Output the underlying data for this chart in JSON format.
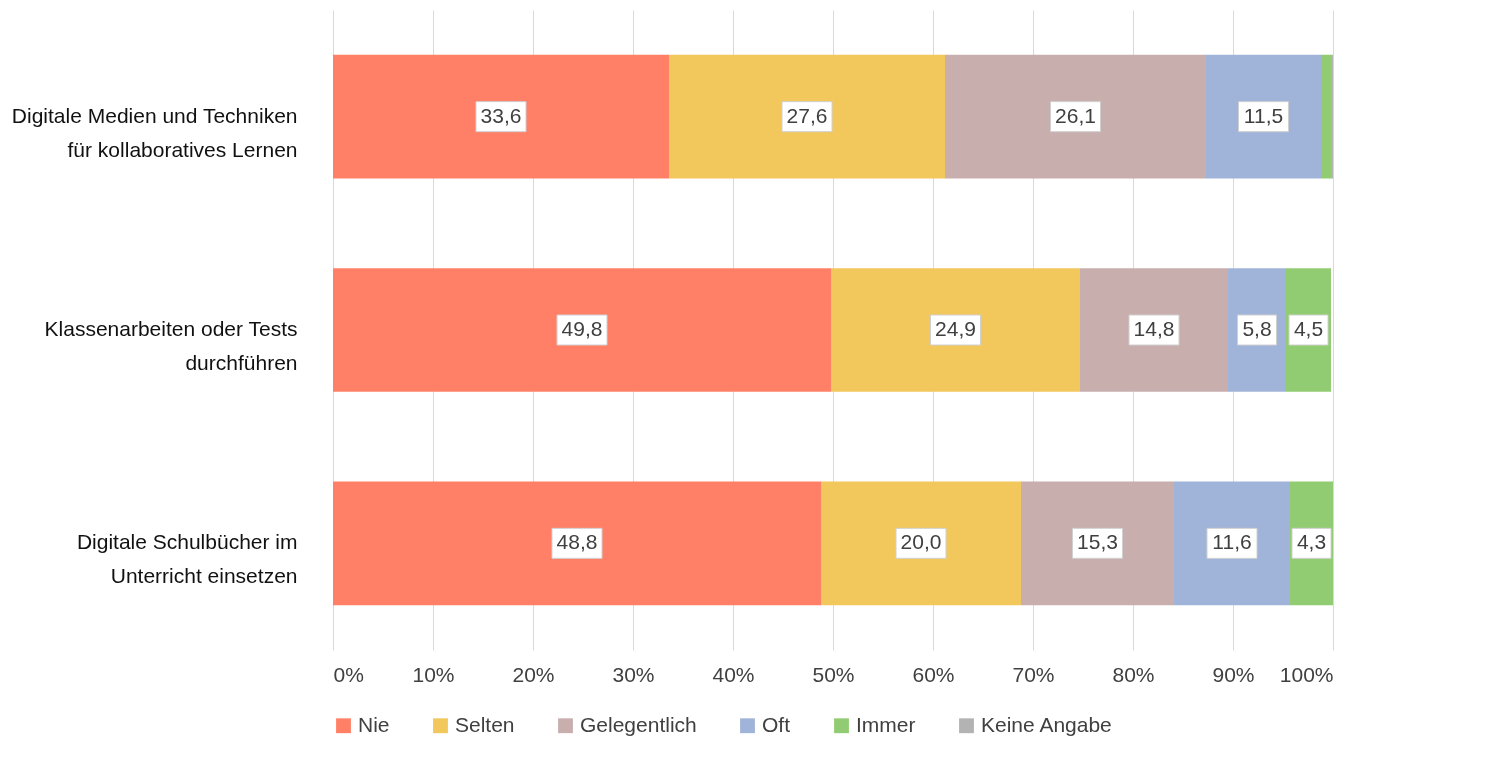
{
  "chart_data": {
    "type": "bar",
    "orientation": "horizontal",
    "stacked": true,
    "categories": [
      "Digitale Medien und Techniken für kollaboratives Lernen",
      "Klassenarbeiten oder Tests durchführen",
      "Digitale Schulbücher im Unterricht einsetzen"
    ],
    "series": [
      {
        "name": "Nie",
        "color": "#ff8066",
        "values": [
          33.6,
          49.8,
          48.8
        ],
        "value_labels": [
          "33,6",
          "49,8",
          "48,8"
        ]
      },
      {
        "name": "Selten",
        "color": "#f2c75c",
        "values": [
          27.6,
          24.9,
          20.0
        ],
        "value_labels": [
          "27,6",
          "24,9",
          "20,0"
        ]
      },
      {
        "name": "Gelegentlich",
        "color": "#c9aeae",
        "values": [
          26.1,
          14.8,
          15.3
        ],
        "value_labels": [
          "26,1",
          "14,8",
          "15,3"
        ]
      },
      {
        "name": "Oft",
        "color": "#a0b3d8",
        "values": [
          11.5,
          5.8,
          11.6
        ],
        "value_labels": [
          "11,5",
          "5,8",
          "11,6"
        ]
      },
      {
        "name": "Immer",
        "color": "#92cc72",
        "values": [
          1.0,
          4.5,
          4.3
        ],
        "value_labels": [
          null,
          "4,5",
          "4,3"
        ]
      },
      {
        "name": "Keine Angabe",
        "color": "#b3b3b3",
        "values": [
          0.2,
          null,
          null
        ]
      }
    ],
    "xlim": [
      0,
      100
    ],
    "xticks": [
      {
        "value": 0,
        "label": "0%"
      },
      {
        "value": 10,
        "label": "10%"
      },
      {
        "value": 20,
        "label": "20%"
      },
      {
        "value": 30,
        "label": "30%"
      },
      {
        "value": 40,
        "label": "40%"
      },
      {
        "value": 50,
        "label": "50%"
      },
      {
        "value": 60,
        "label": "60%"
      },
      {
        "value": 70,
        "label": "70%"
      },
      {
        "value": 80,
        "label": "80%"
      },
      {
        "value": 90,
        "label": "90%"
      },
      {
        "value": 100,
        "label": "100%"
      }
    ],
    "grid": "x",
    "legend": "bottom"
  }
}
